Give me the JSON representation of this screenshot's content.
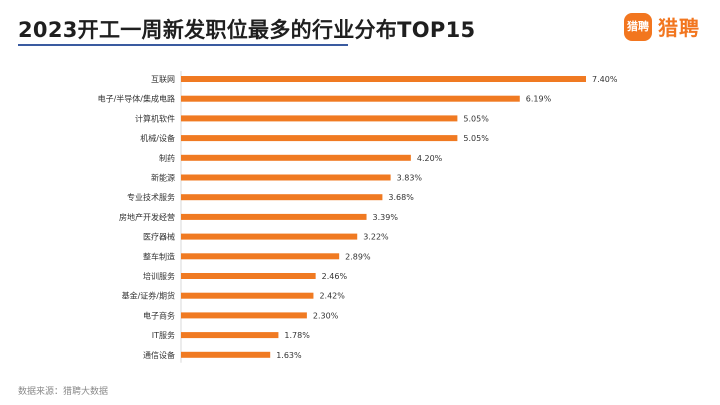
{
  "header": {
    "title": "2023开工一周新发职位最多的行业分布TOP15"
  },
  "brand": {
    "badge_text": "猎聘",
    "name": "猎聘",
    "color": "#f2761f"
  },
  "footer": {
    "source": "数据来源：猎聘大数据"
  },
  "chart_data": {
    "type": "bar",
    "orientation": "horizontal",
    "title": "2023开工一周新发职位最多的行业分布TOP15",
    "xlabel": "",
    "ylabel": "",
    "bar_color": "#f07a22",
    "grid": false,
    "legend": "none",
    "xlim": [
      0,
      7.4
    ],
    "categories": [
      "互联网",
      "电子/半导体/集成电路",
      "计算机软件",
      "机械/设备",
      "制药",
      "新能源",
      "专业技术服务",
      "房地产开发经营",
      "医疗器械",
      "整车制造",
      "培训服务",
      "基金/证券/期货",
      "电子商务",
      "IT服务",
      "通信设备"
    ],
    "values": [
      7.4,
      6.19,
      5.05,
      5.05,
      4.2,
      3.83,
      3.68,
      3.39,
      3.22,
      2.89,
      2.46,
      2.42,
      2.3,
      1.78,
      1.63
    ],
    "value_labels": [
      "7.40%",
      "6.19%",
      "5.05%",
      "5.05%",
      "4.20%",
      "3.83%",
      "3.68%",
      "3.39%",
      "3.22%",
      "2.89%",
      "2.46%",
      "2.42%",
      "2.30%",
      "1.78%",
      "1.63%"
    ]
  }
}
